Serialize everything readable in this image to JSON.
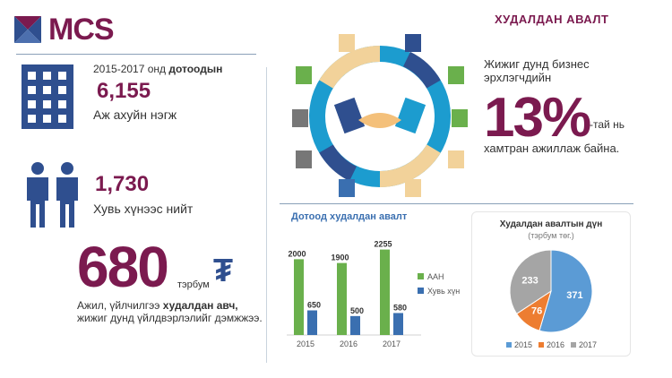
{
  "brand": {
    "logo_text": "MCS"
  },
  "header": {
    "title": "ХУДАЛДАН АВАЛТ"
  },
  "stats": {
    "units_intro_prefix": "2015-2017 онд ",
    "units_intro_bold": "дотоодын",
    "units_value": "6,155",
    "units_label": "Аж ахуйн нэгж",
    "persons_value": "1,730",
    "persons_label": "Хувь хүнээс нийт",
    "amount_value": "680",
    "amount_unit": "тэрбум",
    "amount_currency": "₮",
    "amount_desc_prefix": "Ажил, үйлчилгээ ",
    "amount_desc_bold": "худалдан авч,",
    "amount_desc_rest": "жижиг дунд үйлдвэрлэлийг дэмжжээ."
  },
  "sme": {
    "line1": "Жижиг дунд бизнес",
    "line2": "эрхлэгчдийн",
    "percent": "13%",
    "suffix": "-тай нь",
    "line3": "хамтран ажиллаж байна."
  },
  "chart_data": [
    {
      "type": "bar",
      "title": "Дотоод худалдан авалт",
      "categories": [
        "2015",
        "2016",
        "2017"
      ],
      "series": [
        {
          "name": "ААН",
          "values": [
            2000,
            1900,
            2255
          ],
          "color": "#6ab04c"
        },
        {
          "name": "Хувь хүн",
          "values": [
            650,
            500,
            580
          ],
          "color": "#3a6fb0"
        }
      ],
      "ylim": [
        0,
        2600
      ],
      "legend": "right"
    },
    {
      "type": "pie",
      "title": "Худалдан авалтын дүн",
      "subtitle": "(тэрбум төг.)",
      "categories": [
        "2015",
        "2016",
        "2017"
      ],
      "values": [
        371,
        76,
        233
      ],
      "colors": [
        "#5b9bd5",
        "#ed7d31",
        "#a5a5a5"
      ],
      "legend": "bottom"
    }
  ],
  "colors": {
    "brand": "#7b1a4f",
    "accent_blue": "#2f4f8f"
  },
  "icons": [
    "building-icon",
    "people-icon",
    "tugrik-icon",
    "handshake-ring-icon"
  ]
}
